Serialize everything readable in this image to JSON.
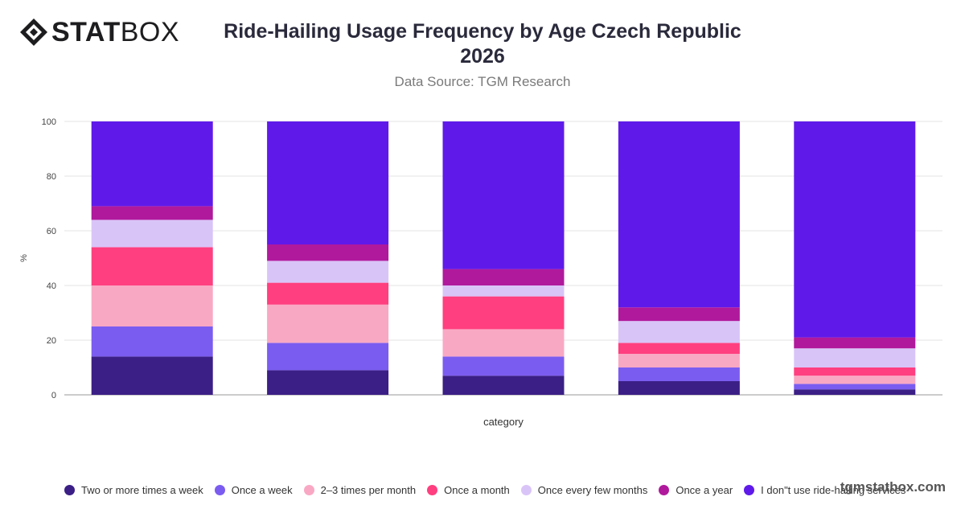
{
  "brand": {
    "logo_bold": "STAT",
    "logo_light": "BOX",
    "watermark": "tgmstatbox.com"
  },
  "chart_data": {
    "type": "bar",
    "stacked": true,
    "title": "Ride-Hailing Usage Frequency by Age Czech Republic 2026",
    "title_line1": "Ride-Hailing Usage Frequency by Age Czech Republic",
    "title_line2": "2026",
    "subtitle": "Data Source: TGM Research",
    "xlabel": "category",
    "ylabel": "%",
    "ylim": [
      0,
      100
    ],
    "yticks": [
      0,
      20,
      40,
      60,
      80,
      100
    ],
    "grid": true,
    "legend_position": "bottom",
    "categories": [
      "",
      "",
      "",
      "",
      ""
    ],
    "series": [
      {
        "name": "Two or more times a week",
        "color": "#3b1f86",
        "values": [
          14,
          9,
          7,
          5,
          2
        ]
      },
      {
        "name": "Once a week",
        "color": "#7b5cf0",
        "values": [
          11,
          10,
          7,
          5,
          2
        ]
      },
      {
        "name": "2–3 times per month",
        "color": "#f9a8c4",
        "values": [
          15,
          14,
          10,
          5,
          3
        ]
      },
      {
        "name": "Once a month",
        "color": "#ff3f7f",
        "values": [
          14,
          8,
          12,
          4,
          3
        ]
      },
      {
        "name": "Once every few months",
        "color": "#d9c4f8",
        "values": [
          10,
          8,
          4,
          8,
          7
        ]
      },
      {
        "name": "Once a year",
        "color": "#b0199c",
        "values": [
          5,
          6,
          6,
          5,
          4
        ]
      },
      {
        "name": "I don\"t use ride-hailing services",
        "color": "#5f1aea",
        "values": [
          31,
          45,
          54,
          68,
          79
        ]
      }
    ]
  }
}
